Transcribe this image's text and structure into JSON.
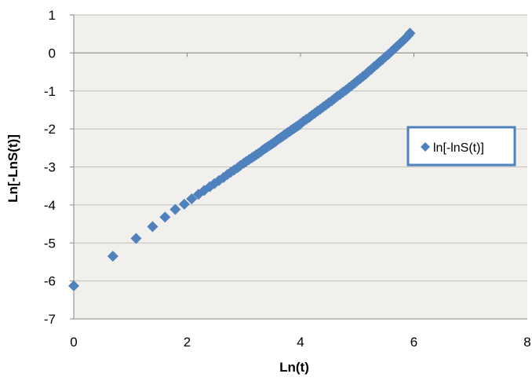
{
  "chart_data": {
    "type": "scatter",
    "xlabel": "Ln(t)",
    "ylabel": "Ln[-LnS(t)]",
    "xlim": [
      0,
      8
    ],
    "ylim": [
      -7,
      1
    ],
    "x_ticks": [
      "0",
      "2",
      "4",
      "6",
      "8"
    ],
    "y_ticks": [
      "-7",
      "-6",
      "-5",
      "-4",
      "-3",
      "-2",
      "-1",
      "0",
      "1"
    ],
    "grid": "horizontal",
    "legend_position": "right",
    "marker": "diamond",
    "colors": {
      "series": "#4f81bd",
      "plot_background": "#f2f0ed",
      "gridline": "#bfbfbf",
      "legend_border": "#4f81bd"
    },
    "series": [
      {
        "name": "ln[-lnS(t)]",
        "points": [
          [
            0.0,
            -6.13
          ],
          [
            0.69,
            -5.35
          ],
          [
            1.1,
            -4.88
          ],
          [
            1.39,
            -4.57
          ],
          [
            1.61,
            -4.32
          ],
          [
            1.79,
            -4.12
          ],
          [
            1.95,
            -3.98
          ],
          [
            2.08,
            -3.84
          ],
          [
            2.2,
            -3.72
          ],
          [
            2.3,
            -3.62
          ],
          [
            2.4,
            -3.52
          ],
          [
            2.48,
            -3.44
          ],
          [
            2.56,
            -3.36
          ],
          [
            2.64,
            -3.28
          ],
          [
            2.71,
            -3.2
          ],
          [
            2.77,
            -3.14
          ],
          [
            2.83,
            -3.08
          ],
          [
            2.89,
            -3.02
          ],
          [
            2.94,
            -2.96
          ],
          [
            3.0,
            -2.9
          ],
          [
            3.04,
            -2.86
          ],
          [
            3.09,
            -2.81
          ],
          [
            3.14,
            -2.76
          ],
          [
            3.18,
            -2.72
          ],
          [
            3.22,
            -2.68
          ],
          [
            3.26,
            -2.64
          ],
          [
            3.3,
            -2.6
          ],
          [
            3.33,
            -2.56
          ],
          [
            3.37,
            -2.52
          ],
          [
            3.4,
            -2.49
          ],
          [
            3.43,
            -2.46
          ],
          [
            3.47,
            -2.42
          ],
          [
            3.5,
            -2.39
          ],
          [
            3.53,
            -2.36
          ],
          [
            3.56,
            -2.33
          ],
          [
            3.58,
            -2.3
          ],
          [
            3.61,
            -2.27
          ],
          [
            3.64,
            -2.24
          ],
          [
            3.66,
            -2.22
          ],
          [
            3.69,
            -2.19
          ],
          [
            3.71,
            -2.16
          ],
          [
            3.74,
            -2.14
          ],
          [
            3.76,
            -2.11
          ],
          [
            3.78,
            -2.09
          ],
          [
            3.81,
            -2.07
          ],
          [
            3.83,
            -2.04
          ],
          [
            3.85,
            -2.02
          ],
          [
            3.87,
            -2.0
          ],
          [
            3.89,
            -1.98
          ],
          [
            3.91,
            -1.96
          ],
          [
            3.93,
            -1.94
          ],
          [
            3.95,
            -1.92
          ],
          [
            3.97,
            -1.9
          ],
          [
            3.99,
            -1.88
          ],
          [
            4.0,
            -1.86
          ],
          [
            4.05,
            -1.8
          ],
          [
            4.1,
            -1.75
          ],
          [
            4.15,
            -1.7
          ],
          [
            4.2,
            -1.64
          ],
          [
            4.25,
            -1.59
          ],
          [
            4.3,
            -1.53
          ],
          [
            4.35,
            -1.48
          ],
          [
            4.4,
            -1.42
          ],
          [
            4.45,
            -1.37
          ],
          [
            4.5,
            -1.31
          ],
          [
            4.55,
            -1.26
          ],
          [
            4.6,
            -1.2
          ],
          [
            4.65,
            -1.14
          ],
          [
            4.7,
            -1.09
          ],
          [
            4.75,
            -1.03
          ],
          [
            4.8,
            -0.98
          ],
          [
            4.85,
            -0.92
          ],
          [
            4.9,
            -0.86
          ],
          [
            4.95,
            -0.8
          ],
          [
            5.0,
            -0.74
          ],
          [
            5.05,
            -0.68
          ],
          [
            5.1,
            -0.62
          ],
          [
            5.15,
            -0.56
          ],
          [
            5.2,
            -0.49
          ],
          [
            5.25,
            -0.43
          ],
          [
            5.3,
            -0.36
          ],
          [
            5.35,
            -0.3
          ],
          [
            5.4,
            -0.23
          ],
          [
            5.45,
            -0.17
          ],
          [
            5.5,
            -0.1
          ],
          [
            5.55,
            -0.04
          ],
          [
            5.6,
            0.03
          ],
          [
            5.65,
            0.1
          ],
          [
            5.7,
            0.17
          ],
          [
            5.75,
            0.24
          ],
          [
            5.8,
            0.31
          ],
          [
            5.85,
            0.38
          ],
          [
            5.9,
            0.46
          ],
          [
            5.93,
            0.52
          ]
        ]
      }
    ]
  }
}
